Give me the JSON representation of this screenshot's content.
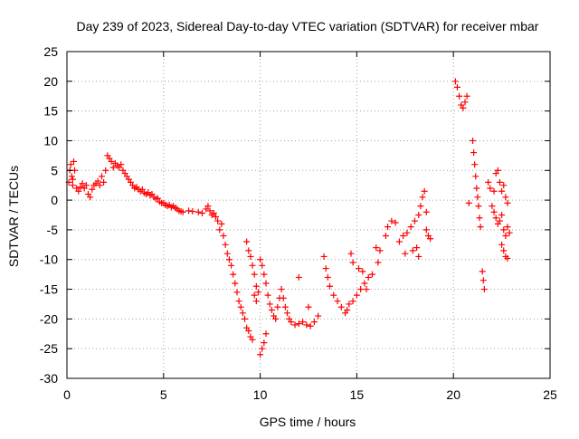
{
  "chart_data": {
    "type": "scatter",
    "title": "Day 239 of 2023, Sidereal Day-to-day VTEC variation (SDTVAR) for receiver mbar",
    "xlabel": "GPS time / hours",
    "ylabel": "SDTVAR / TECUs",
    "xlim": [
      0,
      25
    ],
    "ylim": [
      -30,
      25
    ],
    "xticks": [
      0,
      5,
      10,
      15,
      20,
      25
    ],
    "yticks": [
      -30,
      -25,
      -20,
      -15,
      -10,
      -5,
      0,
      5,
      10,
      15,
      20,
      25
    ],
    "grid": true,
    "marker": "+",
    "series": [
      {
        "name": "SDTVAR",
        "color": "#ff0000",
        "points": [
          [
            0.1,
            3.0
          ],
          [
            0.15,
            5.0
          ],
          [
            0.2,
            6.0
          ],
          [
            0.25,
            4.0
          ],
          [
            0.3,
            2.5
          ],
          [
            0.35,
            6.5
          ],
          [
            0.4,
            5.0
          ],
          [
            0.3,
            3.5
          ],
          [
            0.5,
            2.0
          ],
          [
            0.6,
            1.5
          ],
          [
            0.7,
            2.2
          ],
          [
            0.8,
            2.8
          ],
          [
            0.9,
            2.0
          ],
          [
            1.0,
            2.5
          ],
          [
            1.1,
            1.0
          ],
          [
            1.2,
            0.5
          ],
          [
            1.3,
            1.8
          ],
          [
            1.4,
            2.5
          ],
          [
            1.5,
            2.8
          ],
          [
            1.6,
            3.2
          ],
          [
            1.7,
            2.5
          ],
          [
            1.8,
            4.0
          ],
          [
            1.9,
            3.0
          ],
          [
            2.0,
            5.0
          ],
          [
            2.1,
            7.5
          ],
          [
            2.2,
            7.0
          ],
          [
            2.3,
            6.5
          ],
          [
            2.4,
            5.5
          ],
          [
            2.5,
            6.2
          ],
          [
            2.6,
            5.8
          ],
          [
            2.7,
            5.5
          ],
          [
            2.8,
            6.0
          ],
          [
            2.9,
            5.0
          ],
          [
            3.0,
            4.5
          ],
          [
            3.1,
            4.0
          ],
          [
            3.2,
            3.5
          ],
          [
            3.3,
            3.0
          ],
          [
            3.4,
            2.5
          ],
          [
            3.5,
            2.0
          ],
          [
            3.6,
            2.2
          ],
          [
            3.7,
            1.8
          ],
          [
            3.8,
            1.5
          ],
          [
            3.9,
            1.8
          ],
          [
            4.0,
            1.2
          ],
          [
            4.1,
            1.0
          ],
          [
            4.2,
            1.3
          ],
          [
            4.3,
            0.8
          ],
          [
            4.4,
            1.0
          ],
          [
            4.5,
            0.5
          ],
          [
            4.6,
            0.2
          ],
          [
            4.7,
            0.3
          ],
          [
            4.8,
            -0.3
          ],
          [
            4.9,
            -0.5
          ],
          [
            5.0,
            -0.5
          ],
          [
            5.1,
            -0.8
          ],
          [
            5.2,
            -1.0
          ],
          [
            5.3,
            -0.8
          ],
          [
            5.4,
            -1.2
          ],
          [
            5.5,
            -1.0
          ],
          [
            5.6,
            -1.3
          ],
          [
            5.7,
            -1.5
          ],
          [
            5.8,
            -1.8
          ],
          [
            5.9,
            -1.9
          ],
          [
            6.0,
            -2.0
          ],
          [
            6.3,
            -1.8
          ],
          [
            6.5,
            -1.9
          ],
          [
            6.8,
            -2.0
          ],
          [
            7.0,
            -2.2
          ],
          [
            7.2,
            -1.5
          ],
          [
            7.3,
            -1.0
          ],
          [
            7.4,
            -1.8
          ],
          [
            7.5,
            -2.5
          ],
          [
            7.6,
            -2.2
          ],
          [
            7.7,
            -2.8
          ],
          [
            7.8,
            -3.5
          ],
          [
            7.9,
            -5.0
          ],
          [
            8.0,
            -4.0
          ],
          [
            8.1,
            -6.0
          ],
          [
            8.2,
            -7.5
          ],
          [
            8.3,
            -9.0
          ],
          [
            8.4,
            -10.0
          ],
          [
            8.5,
            -11.0
          ],
          [
            8.6,
            -12.5
          ],
          [
            8.7,
            -14.0
          ],
          [
            8.8,
            -15.5
          ],
          [
            8.9,
            -17.0
          ],
          [
            9.0,
            -18.0
          ],
          [
            9.1,
            -19.0
          ],
          [
            9.2,
            -20.0
          ],
          [
            9.3,
            -21.5
          ],
          [
            9.4,
            -22.0
          ],
          [
            9.5,
            -23.0
          ],
          [
            9.6,
            -23.5
          ],
          [
            9.3,
            -7.0
          ],
          [
            9.4,
            -8.5
          ],
          [
            9.5,
            -9.5
          ],
          [
            9.6,
            -11.0
          ],
          [
            9.7,
            -12.5
          ],
          [
            9.8,
            -14.5
          ],
          [
            9.9,
            -15.5
          ],
          [
            9.7,
            -16.0
          ],
          [
            9.8,
            -17.0
          ],
          [
            10.0,
            -26.0
          ],
          [
            10.1,
            -25.0
          ],
          [
            10.2,
            -24.0
          ],
          [
            10.3,
            -22.5
          ],
          [
            10.0,
            -10.0
          ],
          [
            10.1,
            -11.0
          ],
          [
            10.2,
            -12.5
          ],
          [
            10.3,
            -14.0
          ],
          [
            10.4,
            -16.0
          ],
          [
            10.5,
            -17.5
          ],
          [
            10.6,
            -18.5
          ],
          [
            10.7,
            -19.5
          ],
          [
            10.8,
            -20.0
          ],
          [
            10.9,
            -18.0
          ],
          [
            11.0,
            -16.5
          ],
          [
            11.1,
            -15.0
          ],
          [
            11.2,
            -16.5
          ],
          [
            11.3,
            -18.0
          ],
          [
            11.4,
            -19.0
          ],
          [
            11.5,
            -20.0
          ],
          [
            11.6,
            -20.5
          ],
          [
            11.8,
            -21.0
          ],
          [
            12.0,
            -20.8
          ],
          [
            12.2,
            -20.5
          ],
          [
            12.4,
            -21.0
          ],
          [
            12.6,
            -21.2
          ],
          [
            12.8,
            -20.5
          ],
          [
            13.0,
            -19.5
          ],
          [
            12.0,
            -13.0
          ],
          [
            12.5,
            -18.0
          ],
          [
            13.3,
            -9.5
          ],
          [
            13.4,
            -11.5
          ],
          [
            13.5,
            -13.0
          ],
          [
            13.6,
            -14.5
          ],
          [
            13.8,
            -16.0
          ],
          [
            14.0,
            -17.0
          ],
          [
            14.2,
            -18.0
          ],
          [
            14.4,
            -19.0
          ],
          [
            14.5,
            -18.5
          ],
          [
            14.6,
            -17.5
          ],
          [
            14.8,
            -17.0
          ],
          [
            15.0,
            -16.0
          ],
          [
            15.2,
            -15.0
          ],
          [
            15.4,
            -14.0
          ],
          [
            15.6,
            -13.0
          ],
          [
            15.8,
            -12.5
          ],
          [
            14.7,
            -9.0
          ],
          [
            14.8,
            -10.5
          ],
          [
            15.1,
            -11.5
          ],
          [
            15.3,
            -12.0
          ],
          [
            15.5,
            -15.0
          ],
          [
            16.0,
            -8.0
          ],
          [
            16.1,
            -10.5
          ],
          [
            16.2,
            -8.5
          ],
          [
            16.5,
            -6.0
          ],
          [
            16.6,
            -4.5
          ],
          [
            16.8,
            -3.5
          ],
          [
            17.0,
            -3.8
          ],
          [
            17.2,
            -7.0
          ],
          [
            17.4,
            -6.0
          ],
          [
            17.6,
            -5.5
          ],
          [
            17.8,
            -4.5
          ],
          [
            18.0,
            -3.5
          ],
          [
            18.2,
            -2.5
          ],
          [
            18.3,
            -1.0
          ],
          [
            18.4,
            0.5
          ],
          [
            18.5,
            1.5
          ],
          [
            18.6,
            -5.0
          ],
          [
            18.7,
            -6.0
          ],
          [
            18.8,
            -6.5
          ],
          [
            18.1,
            -8.0
          ],
          [
            18.2,
            -9.5
          ],
          [
            17.5,
            -9.0
          ],
          [
            17.9,
            -8.5
          ],
          [
            18.6,
            -2.0
          ],
          [
            20.1,
            20.0
          ],
          [
            20.2,
            19.0
          ],
          [
            20.3,
            17.5
          ],
          [
            20.4,
            16.0
          ],
          [
            20.5,
            15.5
          ],
          [
            20.6,
            16.5
          ],
          [
            20.7,
            17.5
          ],
          [
            20.8,
            -0.5
          ],
          [
            21.0,
            10.0
          ],
          [
            21.05,
            8.0
          ],
          [
            21.1,
            6.0
          ],
          [
            21.15,
            4.0
          ],
          [
            21.2,
            2.0
          ],
          [
            21.25,
            0.5
          ],
          [
            21.3,
            -1.0
          ],
          [
            21.35,
            -3.0
          ],
          [
            21.4,
            -4.5
          ],
          [
            21.5,
            -12.0
          ],
          [
            21.55,
            -13.5
          ],
          [
            21.6,
            -15.0
          ],
          [
            21.8,
            3.0
          ],
          [
            21.9,
            2.0
          ],
          [
            22.0,
            -1.0
          ],
          [
            22.1,
            -2.0
          ],
          [
            22.2,
            -3.0
          ],
          [
            22.3,
            -4.0
          ],
          [
            22.1,
            1.5
          ],
          [
            22.2,
            4.5
          ],
          [
            22.3,
            5.0
          ],
          [
            22.4,
            3.0
          ],
          [
            22.5,
            1.5
          ],
          [
            22.6,
            2.5
          ],
          [
            22.7,
            0.5
          ],
          [
            22.8,
            -0.5
          ],
          [
            22.6,
            -5.0
          ],
          [
            22.7,
            -6.0
          ],
          [
            22.5,
            -7.5
          ],
          [
            22.6,
            -8.5
          ],
          [
            22.7,
            -9.5
          ],
          [
            22.8,
            -9.8
          ],
          [
            22.4,
            -3.5
          ],
          [
            22.5,
            -2.5
          ],
          [
            22.8,
            -4.5
          ],
          [
            22.9,
            -5.5
          ]
        ]
      }
    ]
  }
}
